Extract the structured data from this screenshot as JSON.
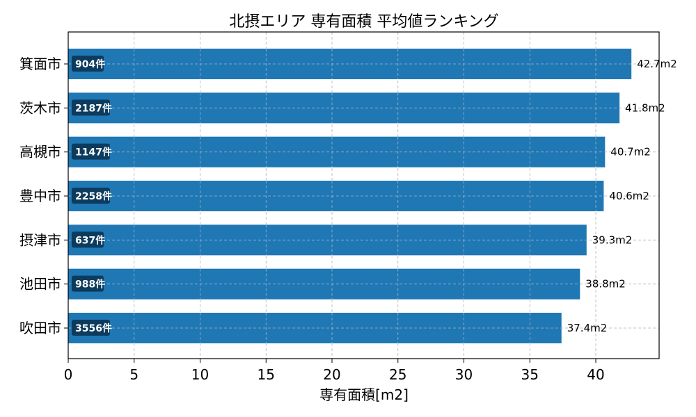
{
  "chart_data": {
    "type": "bar",
    "orientation": "horizontal",
    "title": "北摂エリア 専有面積 平均値ランキング",
    "xlabel": "専有面積[m2]",
    "ylabel": "",
    "xlim": [
      0,
      44.8
    ],
    "xticks": [
      0,
      5,
      10,
      15,
      20,
      25,
      30,
      35,
      40
    ],
    "grid": true,
    "categories": [
      "箕面市",
      "茨木市",
      "高槻市",
      "豊中市",
      "摂津市",
      "池田市",
      "吹田市"
    ],
    "values": [
      42.7,
      41.8,
      40.7,
      40.6,
      39.3,
      38.8,
      37.4
    ],
    "value_labels": [
      "42.7m2",
      "41.8m2",
      "40.7m2",
      "40.6m2",
      "39.3m2",
      "38.8m2",
      "37.4m2"
    ],
    "counts": [
      "904件",
      "2187件",
      "1147件",
      "2258件",
      "637件",
      "988件",
      "3556件"
    ],
    "colors": {
      "bar": "#1f77b4",
      "badge": "#0d3b5e",
      "grid": "#b0b0b0"
    }
  }
}
